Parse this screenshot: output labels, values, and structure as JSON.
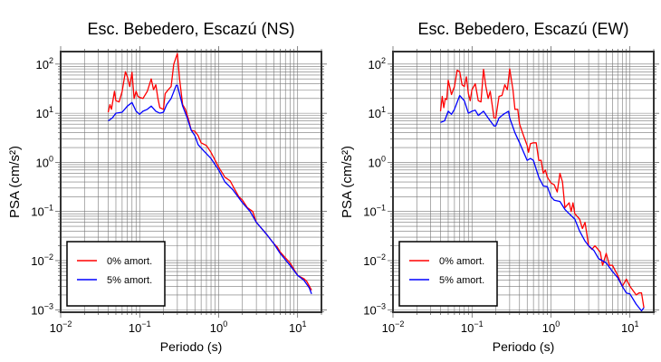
{
  "chart_data": [
    {
      "type": "line",
      "title": "Esc. Bebedero, Escazú (NS)",
      "xlabel": "Periodo (s)",
      "ylabel": "PSA (cm/s²)",
      "xscale": "log",
      "yscale": "log",
      "xlim": [
        0.01,
        20
      ],
      "ylim": [
        0.00089,
        180
      ],
      "grid": true,
      "legend_placement": "bottom-left",
      "xticks": [
        {
          "value": 0.01,
          "base": "10",
          "exp": "−2"
        },
        {
          "value": 0.1,
          "base": "10",
          "exp": "−1"
        },
        {
          "value": 1,
          "base": "10",
          "exp": "0"
        },
        {
          "value": 10,
          "base": "10",
          "exp": "1"
        }
      ],
      "yticks": [
        {
          "value": 100,
          "base": "10",
          "exp": "2"
        },
        {
          "value": 10,
          "base": "10",
          "exp": "1"
        },
        {
          "value": 1,
          "base": "10",
          "exp": "0"
        },
        {
          "value": 0.1,
          "base": "10",
          "exp": "−1"
        },
        {
          "value": 0.01,
          "base": "10",
          "exp": "−2"
        },
        {
          "value": 0.001,
          "base": "10",
          "exp": "−3"
        }
      ],
      "series": [
        {
          "name": "0% amort.",
          "color": "#ff0000",
          "x": [
            0.04,
            0.042,
            0.044,
            0.048,
            0.05,
            0.055,
            0.06,
            0.066,
            0.07,
            0.075,
            0.08,
            0.085,
            0.09,
            0.095,
            0.1,
            0.11,
            0.125,
            0.14,
            0.15,
            0.16,
            0.17,
            0.18,
            0.2,
            0.21,
            0.23,
            0.25,
            0.27,
            0.3,
            0.32,
            0.35,
            0.38,
            0.42,
            0.45,
            0.5,
            0.55,
            0.6,
            0.7,
            0.8,
            1.0,
            1.2,
            1.4,
            1.6,
            1.8,
            2.0,
            2.3,
            2.7,
            3.0,
            3.5,
            4,
            5,
            5.5,
            6,
            8,
            10,
            12,
            13,
            15
          ],
          "y": [
            10.5,
            15,
            12,
            28,
            18,
            17,
            28,
            70,
            55,
            35,
            68,
            20,
            28,
            22,
            21,
            20,
            28,
            50,
            30,
            38,
            20,
            13,
            12,
            25,
            30,
            35,
            100,
            165,
            50,
            15,
            12,
            7,
            4.5,
            4.3,
            3.5,
            2.5,
            2.2,
            1.6,
            0.8,
            0.5,
            0.42,
            0.28,
            0.2,
            0.17,
            0.12,
            0.1,
            0.06,
            0.045,
            0.035,
            0.022,
            0.019,
            0.015,
            0.009,
            0.005,
            0.0043,
            0.0038,
            0.0025
          ]
        },
        {
          "name": "5% amort.",
          "color": "#0000ff",
          "x": [
            0.04,
            0.045,
            0.05,
            0.06,
            0.07,
            0.08,
            0.09,
            0.1,
            0.11,
            0.125,
            0.14,
            0.16,
            0.18,
            0.2,
            0.22,
            0.25,
            0.29,
            0.3,
            0.35,
            0.4,
            0.45,
            0.5,
            0.55,
            0.65,
            0.8,
            1,
            1.2,
            1.5,
            2,
            2.5,
            3,
            4,
            5,
            6,
            8,
            10,
            12,
            14,
            15
          ],
          "y": [
            7,
            8,
            10,
            10.5,
            14,
            16.5,
            11,
            9.5,
            11,
            12,
            14,
            11,
            10,
            10.5,
            15,
            20,
            37,
            37,
            14,
            8,
            4.5,
            3.5,
            2.3,
            1.7,
            1.2,
            0.7,
            0.4,
            0.28,
            0.15,
            0.1,
            0.06,
            0.035,
            0.022,
            0.014,
            0.008,
            0.005,
            0.004,
            0.0028,
            0.0021
          ]
        }
      ]
    },
    {
      "type": "line",
      "title": "Esc. Bebedero, Escazú (EW)",
      "xlabel": "Periodo (s)",
      "ylabel": "PSA (cm/s²)",
      "xscale": "log",
      "yscale": "log",
      "xlim": [
        0.01,
        20
      ],
      "ylim": [
        0.00089,
        180
      ],
      "grid": true,
      "legend_placement": "bottom-left",
      "xticks": [
        {
          "value": 0.01,
          "base": "10",
          "exp": "−2"
        },
        {
          "value": 0.1,
          "base": "10",
          "exp": "−1"
        },
        {
          "value": 1,
          "base": "10",
          "exp": "0"
        },
        {
          "value": 10,
          "base": "10",
          "exp": "1"
        }
      ],
      "yticks": [
        {
          "value": 100,
          "base": "10",
          "exp": "2"
        },
        {
          "value": 10,
          "base": "10",
          "exp": "1"
        },
        {
          "value": 1,
          "base": "10",
          "exp": "0"
        },
        {
          "value": 0.1,
          "base": "10",
          "exp": "−1"
        },
        {
          "value": 0.01,
          "base": "10",
          "exp": "−2"
        },
        {
          "value": 0.001,
          "base": "10",
          "exp": "−3"
        }
      ],
      "series": [
        {
          "name": "0% amort.",
          "color": "#ff0000",
          "x": [
            0.04,
            0.042,
            0.044,
            0.046,
            0.048,
            0.05,
            0.055,
            0.06,
            0.065,
            0.07,
            0.075,
            0.08,
            0.085,
            0.09,
            0.095,
            0.1,
            0.11,
            0.12,
            0.13,
            0.14,
            0.15,
            0.16,
            0.17,
            0.19,
            0.2,
            0.22,
            0.24,
            0.26,
            0.28,
            0.3,
            0.33,
            0.35,
            0.38,
            0.4,
            0.45,
            0.5,
            0.52,
            0.55,
            0.6,
            0.65,
            0.7,
            0.75,
            0.8,
            0.85,
            0.9,
            1.0,
            1.1,
            1.2,
            1.3,
            1.4,
            1.5,
            1.7,
            1.8,
            1.9,
            2.0,
            2.3,
            2.5,
            2.7,
            3.0,
            3.3,
            3.6,
            4.2,
            4.5,
            5,
            5.5,
            6,
            7,
            8,
            9,
            10,
            12,
            13,
            14,
            15
          ],
          "y": [
            11,
            22,
            13,
            20,
            19,
            47,
            24,
            35,
            75,
            70,
            38,
            35,
            55,
            25,
            18,
            30,
            40,
            18,
            17,
            78,
            35,
            20,
            28,
            8,
            8,
            22,
            23,
            38,
            30,
            80,
            30,
            12,
            12,
            6,
            3.5,
            2.2,
            1.6,
            2.4,
            2.5,
            2.5,
            1.1,
            1.1,
            0.6,
            0.7,
            0.5,
            0.38,
            0.35,
            0.25,
            0.6,
            0.4,
            0.12,
            0.15,
            0.1,
            0.15,
            0.09,
            0.07,
            0.045,
            0.06,
            0.02,
            0.017,
            0.02,
            0.015,
            0.008,
            0.014,
            0.008,
            0.008,
            0.005,
            0.003,
            0.0042,
            0.003,
            0.002,
            0.0022,
            0.0022,
            0.0011
          ]
        },
        {
          "name": "5% amort.",
          "color": "#0000ff",
          "x": [
            0.04,
            0.045,
            0.05,
            0.055,
            0.06,
            0.07,
            0.08,
            0.09,
            0.1,
            0.11,
            0.12,
            0.14,
            0.16,
            0.19,
            0.2,
            0.22,
            0.25,
            0.29,
            0.3,
            0.35,
            0.4,
            0.5,
            0.55,
            0.6,
            0.7,
            0.8,
            0.9,
            1.0,
            1.1,
            1.3,
            1.5,
            1.7,
            2,
            2.3,
            2.7,
            3,
            3.5,
            4,
            5,
            6,
            7,
            8,
            9,
            10,
            12,
            14,
            15
          ],
          "y": [
            6.5,
            7,
            11,
            9.5,
            12,
            23,
            18,
            10,
            11,
            11.5,
            9,
            11,
            8,
            5.5,
            5.5,
            8,
            9.5,
            11,
            8,
            4,
            2.5,
            1.1,
            1.2,
            1.1,
            0.5,
            0.33,
            0.32,
            0.2,
            0.17,
            0.16,
            0.11,
            0.09,
            0.07,
            0.04,
            0.025,
            0.02,
            0.016,
            0.011,
            0.009,
            0.006,
            0.0045,
            0.003,
            0.0022,
            0.0021,
            0.0013,
            0.00095,
            0.0011
          ]
        }
      ]
    }
  ]
}
